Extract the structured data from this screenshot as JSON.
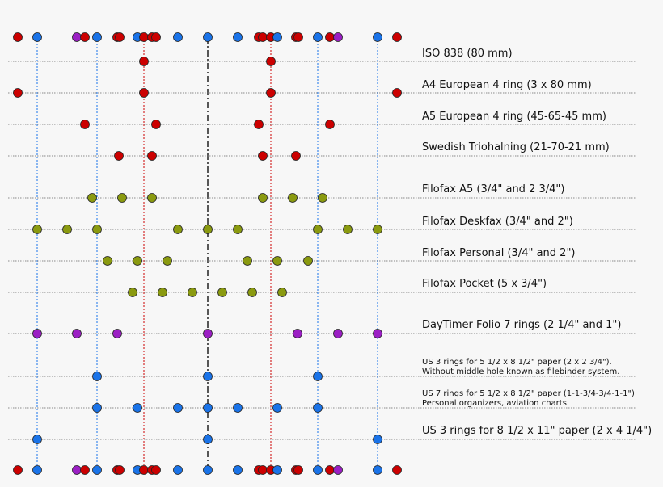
{
  "rows": [
    {
      "label": [
        "ISO 838 (80 mm)"
      ]
    },
    {
      "label": [
        "A4 European 4 ring (3 x 80 mm)"
      ]
    },
    {
      "label": [
        "A5 European 4 ring (45-65-45 mm)"
      ]
    },
    {
      "label": [
        "Swedish Triohalning (21-70-21 mm)"
      ]
    },
    {
      "label": [
        "Filofax A5 (3/4\" and 2 3/4\")"
      ]
    },
    {
      "label": [
        "Filofax Deskfax (3/4\" and 2\")"
      ]
    },
    {
      "label": [
        "Filofax Personal (3/4\" and 2\")"
      ]
    },
    {
      "label": [
        "Filofax Pocket (5 x 3/4\")"
      ]
    },
    {
      "label": [
        "DayTimer Folio 7 rings (2 1/4\" and 1\")"
      ]
    },
    {
      "label": [
        "US 3 rings for 5 1/2 x 8 1/2\" paper (2 x 2 3/4\").",
        "Without middle hole known as filebinder system."
      ]
    },
    {
      "label": [
        "US 7 rings for 5 1/2 x 8 1/2\" paper (1-1-3/4-3/4-1-1\")",
        "Personal organizers, aviation charts."
      ]
    },
    {
      "label": [
        "US 3 rings for 8 1/2 x 11\" paper (2 x 4 1/4\")"
      ]
    }
  ]
}
